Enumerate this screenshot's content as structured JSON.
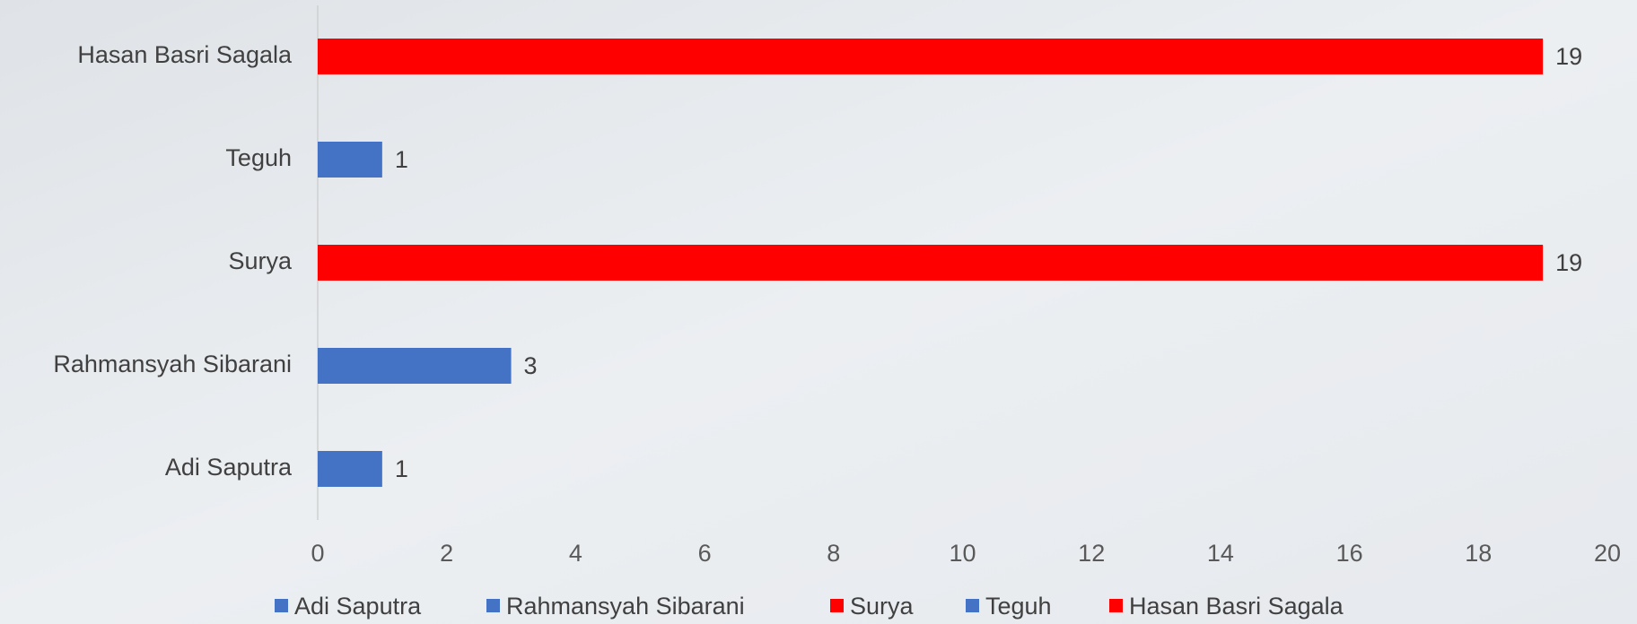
{
  "chart_data": {
    "type": "bar",
    "orientation": "horizontal",
    "categories": [
      "Adi Saputra",
      "Rahmansyah Sibarani",
      "Surya",
      "Teguh",
      "Hasan Basri Sagala"
    ],
    "values": [
      1,
      3,
      19,
      1,
      19
    ],
    "colors": [
      "#4472c4",
      "#4472c4",
      "#ff0000",
      "#4472c4",
      "#ff0000"
    ],
    "xlim": [
      0,
      20
    ],
    "xticks": [
      0,
      2,
      4,
      6,
      8,
      10,
      12,
      14,
      16,
      18,
      20
    ],
    "grid": false,
    "legend": "bottom",
    "data_labels": true
  }
}
